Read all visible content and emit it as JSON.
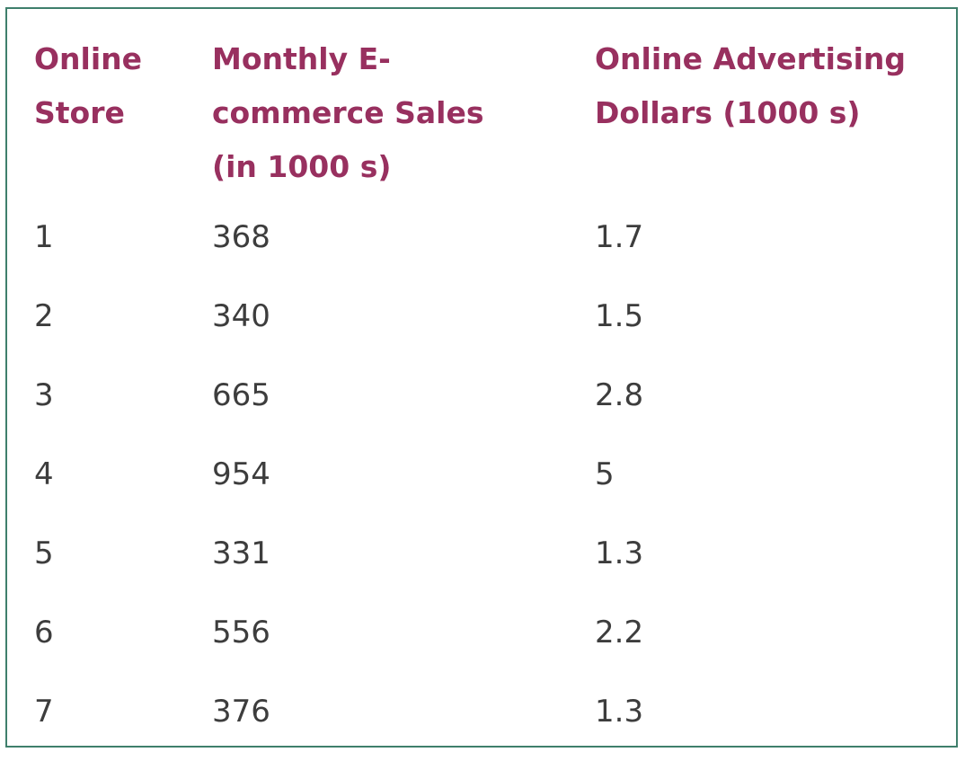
{
  "table": {
    "headers": [
      "Online\nStore",
      "Monthly E-\ncommerce Sales\n(in 1000 s)",
      "Online Advertising\nDollars (1000 s)"
    ],
    "rows": [
      [
        "1",
        "368",
        "1.7"
      ],
      [
        "2",
        "340",
        "1.5"
      ],
      [
        "3",
        "665",
        "2.8"
      ],
      [
        "4",
        "954",
        "5"
      ],
      [
        "5",
        "331",
        "1.3"
      ],
      [
        "6",
        "556",
        "2.2"
      ],
      [
        "7",
        "376",
        "1.3"
      ]
    ]
  },
  "colors": {
    "header_text": "#98305f",
    "body_text": "#3d3d3d",
    "border": "#3f7f6c"
  }
}
